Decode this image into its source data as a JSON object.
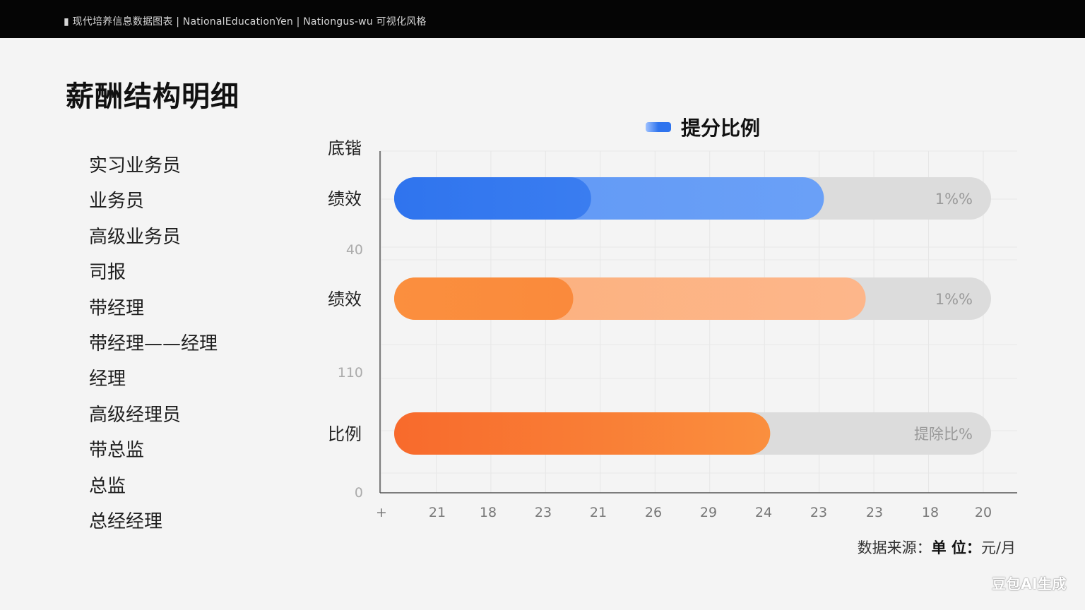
{
  "header": {
    "text": "▮ 现代培养信息数据图表 | NationalEducationYen | Nationgus-wu 可视化风格"
  },
  "page_title": "薪酬结构明细",
  "levels": [
    "实习业务员",
    "业务员",
    "高级业务员",
    "司报",
    "带经理",
    "带经理——经理",
    "经理",
    "高级经理员",
    "带总监",
    "总监",
    "总经经理"
  ],
  "source": {
    "prefix": "数据来源：",
    "unit_key": "单 位：",
    "unit_value": "元/月"
  },
  "watermark": "豆包AI生成",
  "colors": {
    "blue": "#2f74ee",
    "blue_light": "#5f97f5",
    "orange": "#fa8a3c",
    "orange_light": "#fcb07c",
    "orange_deep": "#f86a2c",
    "track": "#dcdcdc"
  },
  "chart_data": {
    "type": "bar",
    "orientation": "horizontal",
    "legend": {
      "label": "提分比例",
      "position": "top"
    },
    "y_top_label": "底锴",
    "y_tick_labels": [
      {
        "label": "40",
        "value": 40
      },
      {
        "label": "110",
        "value": 110
      },
      {
        "label": "0",
        "value": 0
      }
    ],
    "x_tick_labels": [
      "+",
      "21",
      "18",
      "23",
      "21",
      "26",
      "29",
      "24",
      "23",
      "23",
      "18",
      "20"
    ],
    "grid": true,
    "bars": [
      {
        "category": "绩效",
        "inner": 0.33,
        "outer": 0.72,
        "label": "1%%",
        "color": "blue"
      },
      {
        "category": "绩效",
        "inner": 0.3,
        "outer": 0.79,
        "label": "1%%",
        "color": "orange"
      },
      {
        "category": "比例",
        "inner": 0,
        "outer": 0.63,
        "label": "提除比%",
        "color": "orange_deep"
      }
    ]
  }
}
